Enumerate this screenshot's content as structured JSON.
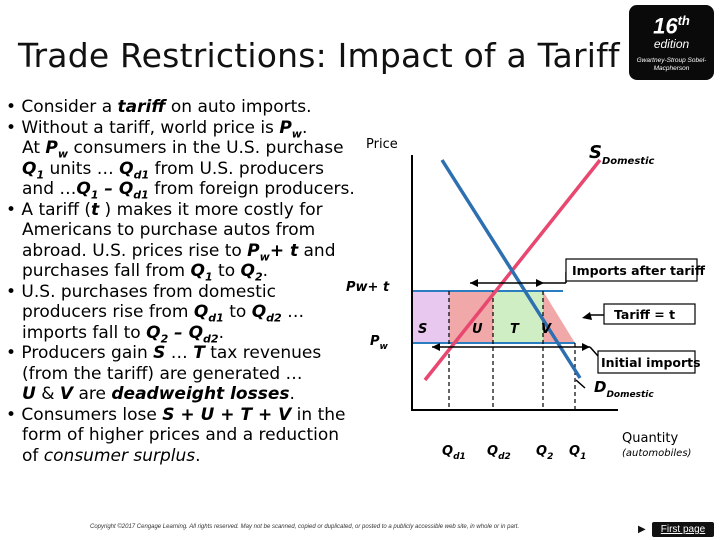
{
  "slide": {
    "title": "Trade Restrictions: Impact of a Tariff",
    "edition_number": "16",
    "edition_suffix": "th",
    "edition_word": "edition",
    "authors": "Gwartney-Stroup Sobel-Macpherson",
    "copyright": "Copyright ©2017 Cengage Learning. All rights reserved. May not be scanned, copied or duplicated, or posted to a publicly accessible web site, in whole or in part.",
    "next_label": "First page"
  },
  "bullets": [
    [
      {
        "t": "• Consider a "
      },
      {
        "t": "tariff",
        "b": 1,
        "i": 1
      },
      {
        "t": " on auto imports."
      }
    ],
    [
      {
        "t": "• Without a tariff, world price is "
      },
      {
        "t": "P",
        "b": 1,
        "i": 1
      },
      {
        "t": "w",
        "b": 1,
        "i": 1,
        "s": "sub"
      },
      {
        "t": "."
      }
    ],
    [
      {
        "t": "At "
      },
      {
        "t": "P",
        "b": 1,
        "i": 1
      },
      {
        "t": "w",
        "b": 1,
        "i": 1,
        "s": "sub"
      },
      {
        "t": " consumers in the U.S. purchase"
      }
    ],
    [
      {
        "t": "Q",
        "b": 1,
        "i": 1
      },
      {
        "t": "1",
        "b": 1,
        "i": 1,
        "s": "sub"
      },
      {
        "t": " units … "
      },
      {
        "t": "Q",
        "b": 1,
        "i": 1
      },
      {
        "t": "d1",
        "b": 1,
        "i": 1,
        "s": "sub"
      },
      {
        "t": " from U.S. producers"
      }
    ],
    [
      {
        "t": "and …"
      },
      {
        "t": "Q",
        "b": 1,
        "i": 1
      },
      {
        "t": "1",
        "b": 1,
        "i": 1,
        "s": "sub"
      },
      {
        "t": " – ",
        "b": 1,
        "i": 1
      },
      {
        "t": "Q",
        "b": 1,
        "i": 1
      },
      {
        "t": "d1",
        "b": 1,
        "i": 1,
        "s": "sub"
      },
      {
        "t": " from foreign producers."
      }
    ],
    [
      {
        "t": "• A tariff ("
      },
      {
        "t": "t",
        "b": 1,
        "i": 1
      },
      {
        "t": " ) makes it more costly for"
      }
    ],
    [
      {
        "t": "Americans to purchase autos from"
      }
    ],
    [
      {
        "t": "abroad.  U.S. prices rise to "
      },
      {
        "t": "P",
        "b": 1,
        "i": 1
      },
      {
        "t": "w",
        "b": 1,
        "i": 1,
        "s": "sub"
      },
      {
        "t": "+ t",
        "b": 1,
        "i": 1
      },
      {
        "t": " and"
      }
    ],
    [
      {
        "t": "purchases fall from "
      },
      {
        "t": "Q",
        "b": 1,
        "i": 1
      },
      {
        "t": "1",
        "b": 1,
        "i": 1,
        "s": "sub"
      },
      {
        "t": " to "
      },
      {
        "t": "Q",
        "b": 1,
        "i": 1
      },
      {
        "t": "2",
        "b": 1,
        "i": 1,
        "s": "sub"
      },
      {
        "t": "."
      }
    ],
    [
      {
        "t": "• U.S. purchases from domestic"
      }
    ],
    [
      {
        "t": "producers rise from "
      },
      {
        "t": "Q",
        "b": 1,
        "i": 1
      },
      {
        "t": "d1",
        "b": 1,
        "i": 1,
        "s": "sub"
      },
      {
        "t": " to "
      },
      {
        "t": "Q",
        "b": 1,
        "i": 1
      },
      {
        "t": "d2",
        "b": 1,
        "i": 1,
        "s": "sub"
      },
      {
        "t": " …"
      }
    ],
    [
      {
        "t": "imports fall to "
      },
      {
        "t": "Q",
        "b": 1,
        "i": 1
      },
      {
        "t": "2",
        "b": 1,
        "i": 1,
        "s": "sub"
      },
      {
        "t": " – Q",
        "b": 1,
        "i": 1
      },
      {
        "t": "d2",
        "b": 1,
        "i": 1,
        "s": "sub"
      },
      {
        "t": "."
      }
    ],
    [
      {
        "t": "• Producers gain "
      },
      {
        "t": "S",
        "b": 1,
        "i": 1
      },
      {
        "t": " … "
      },
      {
        "t": "T",
        "b": 1,
        "i": 1
      },
      {
        "t": " tax revenues"
      }
    ],
    [
      {
        "t": "(from the tariff) are generated …"
      }
    ],
    [
      {
        "t": "U",
        "b": 1,
        "i": 1
      },
      {
        "t": " & "
      },
      {
        "t": "V",
        "b": 1,
        "i": 1
      },
      {
        "t": " are "
      },
      {
        "t": "deadweight losses",
        "b": 1,
        "i": 1
      },
      {
        "t": "."
      }
    ],
    [
      {
        "t": "• Consumers lose "
      },
      {
        "t": "S + U + T + V",
        "b": 1,
        "i": 1
      },
      {
        "t": " in the"
      }
    ],
    [
      {
        "t": "form of higher prices and a reduction"
      }
    ],
    [
      {
        "t": "of "
      },
      {
        "t": "consumer surplus",
        "i": 1
      },
      {
        "t": "."
      }
    ]
  ],
  "graph": {
    "y_axis_label": "Price",
    "x_axis_label": "Quantity",
    "x_axis_note": "(automobiles)",
    "supply_label": "S",
    "supply_sub": "Domestic",
    "demand_label": "D",
    "demand_sub": "Domestic",
    "price_tariff_label": "Pw+ t",
    "price_world_label": "P",
    "price_world_sub": "w",
    "imports_after_tariff": "Imports after tariff",
    "tariff_label": "Tariff  = t",
    "initial_imports": "Initial imports",
    "areas": [
      "S",
      "U",
      "T",
      "V"
    ],
    "quantities": [
      {
        "label": "Q",
        "sub": "d1"
      },
      {
        "label": "Q",
        "sub": "d2"
      },
      {
        "label": "Q",
        "sub": "2"
      },
      {
        "label": "Q",
        "sub": "1"
      }
    ],
    "colors": {
      "supply": "#e8476f",
      "demand": "#2d6fb0",
      "area_s": "#e8c8ee",
      "area_t": "#cfeec4",
      "area_uv": "#f0a8a8",
      "price_line": "#2b7dc2"
    }
  }
}
